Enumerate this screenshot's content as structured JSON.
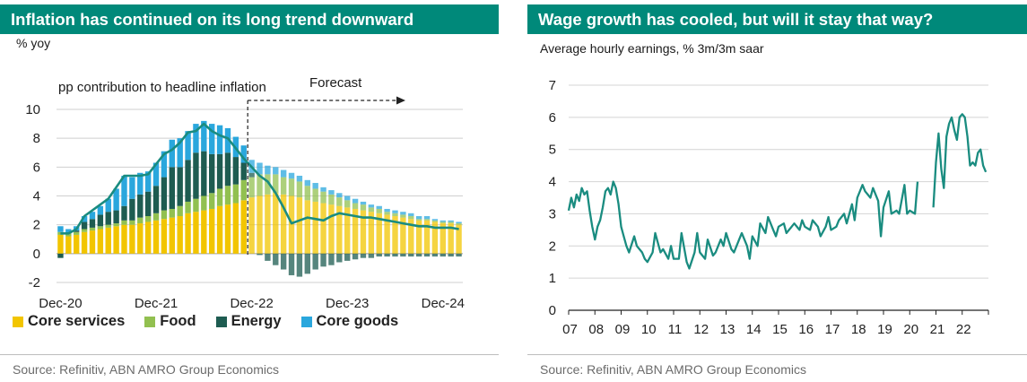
{
  "left": {
    "title": "Inflation has continued on its long trend downward",
    "unit": "% yoy",
    "source": "Source: Refinitiv, ABN AMRO Group Economics",
    "legend": [
      {
        "label": "Core services",
        "color": "#f2c500"
      },
      {
        "label": "Food",
        "color": "#92c050"
      },
      {
        "label": "Energy",
        "color": "#1e5c51"
      },
      {
        "label": "Core goods",
        "color": "#2aa7dd"
      }
    ]
  },
  "right": {
    "title": "Wage growth has cooled, but will it stay that way?",
    "unit": "Average hourly earnings, % 3m/3m saar",
    "source": "Source: Refinitiv, ABN AMRO Group Economics"
  },
  "chart_data": [
    {
      "type": "bar",
      "stacked": true,
      "title": "Inflation has continued on its long trend downward",
      "ylabel": "% yoy",
      "ylim": [
        -2,
        10
      ],
      "yticks": [
        -2,
        0,
        2,
        4,
        6,
        8,
        10
      ],
      "xtick_labels": [
        "Dec-20",
        "Dec-21",
        "Dec-22",
        "Dec-23",
        "Dec-24"
      ],
      "annotations": [
        "pp contribution to headline inflation",
        "Forecast"
      ],
      "forecast_start_index": 24,
      "categories_start": "Dec-20",
      "frequency": "monthly",
      "grid": true,
      "legend_position": "bottom",
      "series": [
        {
          "name": "Core services",
          "color": "#f2c500",
          "values": [
            1.3,
            1.2,
            1.3,
            1.5,
            1.6,
            1.7,
            1.8,
            1.9,
            2.0,
            2.0,
            2.1,
            2.2,
            2.3,
            2.4,
            2.5,
            2.6,
            2.8,
            2.9,
            3.0,
            3.1,
            3.3,
            3.4,
            3.5,
            3.7,
            3.9,
            4.0,
            4.1,
            4.2,
            4.1,
            4.0,
            3.9,
            3.7,
            3.6,
            3.5,
            3.4,
            3.3,
            3.2,
            3.1,
            3.0,
            2.9,
            2.8,
            2.7,
            2.6,
            2.5,
            2.4,
            2.3,
            2.3,
            2.2,
            2.1,
            2.1,
            2.0
          ]
        },
        {
          "name": "Food",
          "color": "#92c050",
          "values": [
            0.2,
            0.2,
            0.2,
            0.2,
            0.2,
            0.2,
            0.2,
            0.2,
            0.3,
            0.3,
            0.4,
            0.4,
            0.5,
            0.6,
            0.6,
            0.7,
            0.8,
            0.9,
            1.0,
            1.1,
            1.2,
            1.3,
            1.3,
            1.4,
            1.4,
            1.5,
            1.4,
            1.3,
            1.2,
            1.2,
            1.1,
            1.0,
            0.9,
            0.8,
            0.7,
            0.6,
            0.5,
            0.4,
            0.4,
            0.3,
            0.3,
            0.2,
            0.2,
            0.2,
            0.2,
            0.1,
            0.1,
            0.1,
            0.1,
            0.1,
            0.1
          ]
        },
        {
          "name": "Energy",
          "color": "#1e5c51",
          "values": [
            -0.3,
            0.0,
            0.1,
            0.5,
            0.6,
            0.8,
            0.9,
            0.9,
            1.0,
            1.5,
            1.6,
            1.7,
            1.9,
            2.3,
            2.9,
            2.7,
            2.9,
            3.2,
            3.1,
            2.7,
            2.4,
            2.3,
            1.9,
            1.2,
            0.3,
            -0.1,
            -0.5,
            -0.8,
            -1.1,
            -1.5,
            -1.6,
            -1.4,
            -1.1,
            -0.9,
            -0.8,
            -0.6,
            -0.5,
            -0.4,
            -0.3,
            -0.3,
            -0.2,
            -0.2,
            -0.2,
            -0.2,
            -0.2,
            -0.2,
            -0.2,
            -0.2,
            -0.2,
            -0.2,
            -0.2
          ]
        },
        {
          "name": "Core goods",
          "color": "#2aa7dd",
          "values": [
            0.4,
            0.3,
            0.3,
            0.4,
            0.5,
            0.6,
            0.9,
            1.5,
            2.1,
            1.5,
            1.5,
            1.4,
            1.6,
            1.8,
            1.9,
            2.0,
            2.0,
            2.0,
            2.1,
            2.1,
            2.0,
            1.7,
            1.4,
            1.2,
            0.9,
            0.8,
            0.6,
            0.5,
            0.5,
            0.4,
            0.4,
            0.4,
            0.4,
            0.3,
            0.3,
            0.3,
            0.3,
            0.3,
            0.2,
            0.2,
            0.2,
            0.2,
            0.2,
            0.2,
            0.2,
            0.2,
            0.2,
            0.1,
            0.1,
            0.1,
            0.1
          ]
        },
        {
          "name": "Headline",
          "type": "line",
          "color": "#1a8c80",
          "values": [
            1.4,
            1.4,
            1.7,
            2.6,
            3.0,
            3.4,
            3.8,
            4.6,
            5.4,
            5.4,
            5.4,
            5.5,
            6.2,
            6.9,
            7.2,
            7.7,
            8.4,
            8.5,
            9.0,
            8.5,
            8.2,
            8.0,
            7.3,
            6.6,
            6.0,
            5.4,
            5.0,
            4.2,
            3.2,
            2.1,
            2.3,
            2.5,
            2.4,
            2.3,
            2.6,
            2.8,
            2.7,
            2.6,
            2.5,
            2.5,
            2.4,
            2.3,
            2.2,
            2.1,
            2.0,
            1.9,
            1.9,
            1.8,
            1.8,
            1.8,
            1.7
          ]
        }
      ]
    },
    {
      "type": "line",
      "title": "Wage growth has cooled, but will it stay that way?",
      "ylabel": "Average hourly earnings, % 3m/3m saar",
      "ylim": [
        0,
        7
      ],
      "yticks": [
        0,
        1,
        2,
        3,
        4,
        5,
        6,
        7
      ],
      "xtick_labels": [
        "07",
        "08",
        "09",
        "10",
        "11",
        "12",
        "13",
        "14",
        "15",
        "16",
        "17",
        "18",
        "19",
        "20",
        "21",
        "22"
      ],
      "xlim": [
        2007.0,
        2023.0
      ],
      "grid": true,
      "series": [
        {
          "name": "",
          "color": "#1a8c80",
          "x": [
            2007.0,
            2007.1,
            2007.2,
            2007.3,
            2007.4,
            2007.5,
            2007.6,
            2007.7,
            2007.8,
            2007.9,
            2008.0,
            2008.1,
            2008.2,
            2008.3,
            2008.4,
            2008.5,
            2008.6,
            2008.7,
            2008.8,
            2008.9,
            2009.0,
            2009.1,
            2009.2,
            2009.3,
            2009.5,
            2009.6,
            2009.8,
            2009.9,
            2010.0,
            2010.2,
            2010.3,
            2010.5,
            2010.6,
            2010.8,
            2010.9,
            2011.0,
            2011.2,
            2011.3,
            2011.5,
            2011.6,
            2011.8,
            2011.9,
            2012.0,
            2012.2,
            2012.3,
            2012.5,
            2012.6,
            2012.8,
            2012.9,
            2013.0,
            2013.2,
            2013.3,
            2013.5,
            2013.6,
            2013.8,
            2013.9,
            2014.0,
            2014.2,
            2014.3,
            2014.5,
            2014.6,
            2014.8,
            2014.9,
            2015.0,
            2015.2,
            2015.3,
            2015.5,
            2015.6,
            2015.8,
            2015.9,
            2016.0,
            2016.2,
            2016.3,
            2016.5,
            2016.6,
            2016.8,
            2016.9,
            2017.0,
            2017.2,
            2017.3,
            2017.5,
            2017.6,
            2017.8,
            2017.9,
            2018.0,
            2018.2,
            2018.3,
            2018.5,
            2018.6,
            2018.8,
            2018.9,
            2019.0,
            2019.2,
            2019.3,
            2019.5,
            2019.6,
            2019.8,
            2019.9,
            2020.0,
            2020.2,
            2020.3
          ],
          "y": [
            3.1,
            3.5,
            3.2,
            3.6,
            3.4,
            3.8,
            3.6,
            3.7,
            3.1,
            2.6,
            2.2,
            2.6,
            2.8,
            3.2,
            3.7,
            3.8,
            3.6,
            4.0,
            3.8,
            3.3,
            2.6,
            2.3,
            2.0,
            1.8,
            2.3,
            2.0,
            1.8,
            1.6,
            1.5,
            1.8,
            2.4,
            1.8,
            1.9,
            1.6,
            2.0,
            1.6,
            1.6,
            2.4,
            1.5,
            1.3,
            1.8,
            2.4,
            1.8,
            1.6,
            2.2,
            1.7,
            1.8,
            2.2,
            2.0,
            2.4,
            1.9,
            1.8,
            2.2,
            2.4,
            2.0,
            1.6,
            2.3,
            2.0,
            2.7,
            2.4,
            2.9,
            2.5,
            2.3,
            2.6,
            2.7,
            2.4,
            2.6,
            2.7,
            2.5,
            2.8,
            2.6,
            2.5,
            2.8,
            2.6,
            2.3,
            2.6,
            2.9,
            2.5,
            2.6,
            2.8,
            3.0,
            2.7,
            3.3,
            2.8,
            3.5,
            3.9,
            3.7,
            3.5,
            3.8,
            3.4,
            2.3,
            3.2,
            3.7,
            3.0,
            3.1,
            3.0,
            3.9,
            3.0,
            3.1,
            3.0,
            4.0
          ]
        },
        {
          "name": "",
          "color": "#1a8c80",
          "x": [
            2020.9,
            2021.0,
            2021.1,
            2021.2,
            2021.3,
            2021.4,
            2021.5,
            2021.6,
            2021.7,
            2021.8,
            2021.9,
            2022.0,
            2022.1,
            2022.2,
            2022.3,
            2022.4,
            2022.5,
            2022.6,
            2022.7,
            2022.8,
            2022.9
          ],
          "y": [
            3.2,
            4.6,
            5.5,
            4.4,
            3.8,
            5.4,
            5.8,
            6.0,
            5.6,
            5.3,
            6.0,
            6.1,
            6.0,
            5.4,
            4.5,
            4.6,
            4.5,
            4.9,
            5.0,
            4.5,
            4.3
          ]
        }
      ]
    }
  ]
}
